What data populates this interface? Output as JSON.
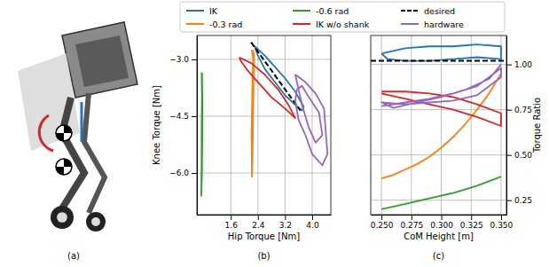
{
  "image_panel": {
    "label": "(a)"
  },
  "chart_data": [
    {
      "type": "line",
      "label": "(b)",
      "x_label": "Hip Torque [Nm]",
      "y_label": "Knee Torque [Nm]",
      "xlim": [
        0.6,
        4.55
      ],
      "ylim": [
        -7.1,
        -2.37
      ],
      "xticks": [
        1.6,
        2.4,
        3.2,
        {
          "value": 4.0,
          "label": "4.0"
        }
      ],
      "yticks": [
        {
          "value": -3.0,
          "label": "−3.0"
        },
        {
          "value": -4.5,
          "label": "−4.5"
        },
        {
          "value": -6.0,
          "label": "−6.0"
        }
      ],
      "grid": true,
      "legend": "top",
      "series": [
        {
          "name": "IK",
          "color": "#1f77b4",
          "line_style": "solid",
          "x": [
            2.3,
            2.6,
            2.9,
            3.2,
            3.5,
            3.75,
            3.7,
            3.5,
            3.2,
            2.9,
            2.6,
            2.4,
            2.3
          ],
          "values": [
            -2.65,
            -2.9,
            -3.2,
            -3.5,
            -3.85,
            -4.25,
            -4.35,
            -4.2,
            -3.95,
            -3.6,
            -3.25,
            -2.9,
            -2.65
          ]
        },
        {
          "name": "-0.3 rad",
          "color": "#ff7f0e",
          "line_style": "solid",
          "x": [
            2.22,
            2.26,
            2.24,
            2.23,
            2.22,
            2.21,
            2.22,
            2.22,
            2.24,
            2.25,
            2.26,
            2.27,
            2.28,
            2.26
          ],
          "values": [
            -2.75,
            -3.0,
            -3.5,
            -4.0,
            -4.5,
            -5.0,
            -5.5,
            -6.1,
            -5.6,
            -5.0,
            -4.3,
            -3.6,
            -2.9,
            -2.75
          ]
        },
        {
          "name": "-0.6 rad",
          "color": "#2ca02c",
          "line_style": "solid",
          "x": [
            0.74,
            0.75,
            0.74,
            0.74,
            0.73,
            0.75,
            0.76,
            0.76,
            0.75
          ],
          "values": [
            -3.35,
            -4.0,
            -4.8,
            -5.6,
            -6.6,
            -6.0,
            -5.0,
            -4.0,
            -3.35
          ]
        },
        {
          "name": "IK w/o shank",
          "color": "#d62728",
          "line_style": "solid",
          "x": [
            1.85,
            2.2,
            2.6,
            3.0,
            3.3,
            3.5,
            3.2,
            2.8,
            2.4,
            2.1,
            1.9,
            1.85
          ],
          "values": [
            -2.95,
            -3.1,
            -3.4,
            -3.8,
            -4.2,
            -4.55,
            -4.3,
            -4.0,
            -3.6,
            -3.3,
            -3.05,
            -2.95
          ]
        },
        {
          "name": "desired",
          "color": "#000000",
          "line_style": "dashed",
          "x": [
            2.2,
            3.65
          ],
          "values": [
            -2.55,
            -4.35
          ]
        },
        {
          "name": "hardware",
          "color": "#9467bd",
          "line_style": "solid",
          "x": [
            3.5,
            3.8,
            4.1,
            4.35,
            4.4,
            4.45,
            4.3,
            4.0,
            3.8,
            3.6,
            3.5,
            3.55,
            3.7,
            3.9,
            4.2,
            4.3,
            4.1,
            3.9,
            3.7,
            3.5
          ],
          "values": [
            -3.4,
            -3.6,
            -3.9,
            -4.3,
            -4.9,
            -5.5,
            -5.8,
            -5.5,
            -5.0,
            -4.6,
            -4.1,
            -3.8,
            -3.7,
            -4.0,
            -4.4,
            -5.0,
            -5.2,
            -4.8,
            -4.2,
            -3.4
          ]
        }
      ]
    },
    {
      "type": "line",
      "label": "(c)",
      "x_label": "CoM Height [m]",
      "y_label": "Torque Ratio",
      "xlim": [
        0.241,
        0.3545
      ],
      "ylim": [
        0.17,
        1.16
      ],
      "xticks": [
        {
          "value": 0.25,
          "label": "0.250"
        },
        0.275,
        {
          "value": 0.3,
          "label": "0.300"
        },
        0.325,
        {
          "value": 0.35,
          "label": "0.350"
        }
      ],
      "yticks": [
        {
          "value": 1.0,
          "label": "1.00"
        },
        0.75,
        {
          "value": 0.5,
          "label": "0.50"
        },
        0.25
      ],
      "grid": true,
      "series": [
        {
          "color": "#1f77b4",
          "line_style": "solid",
          "x": [
            0.25,
            0.27,
            0.29,
            0.31,
            0.33,
            0.35,
            0.35,
            0.33,
            0.31,
            0.29,
            0.27,
            0.255,
            0.25
          ],
          "values": [
            1.06,
            1.09,
            1.1,
            1.1,
            1.11,
            1.1,
            1.03,
            1.04,
            1.03,
            1.02,
            1.02,
            1.03,
            1.06
          ]
        },
        {
          "color": "#ff7f0e",
          "line_style": "solid",
          "x": [
            0.25,
            0.26,
            0.27,
            0.28,
            0.29,
            0.3,
            0.31,
            0.32,
            0.33,
            0.34,
            0.35
          ],
          "values": [
            0.37,
            0.39,
            0.42,
            0.45,
            0.49,
            0.54,
            0.6,
            0.67,
            0.75,
            0.84,
            0.95
          ]
        },
        {
          "color": "#2ca02c",
          "line_style": "solid",
          "x": [
            0.25,
            0.27,
            0.29,
            0.31,
            0.33,
            0.35
          ],
          "values": [
            0.2,
            0.23,
            0.26,
            0.29,
            0.33,
            0.38
          ]
        },
        {
          "color": "#d62728",
          "line_style": "solid",
          "x": [
            0.25,
            0.27,
            0.29,
            0.31,
            0.33,
            0.35,
            0.35,
            0.33,
            0.31,
            0.29,
            0.27,
            0.25
          ],
          "values": [
            0.85,
            0.85,
            0.84,
            0.82,
            0.78,
            0.73,
            0.66,
            0.71,
            0.75,
            0.78,
            0.81,
            0.84
          ]
        },
        {
          "color": "#000000",
          "line_style": "dashed",
          "x": [
            0.241,
            0.3545
          ],
          "values": [
            1.02,
            1.02
          ]
        },
        {
          "color": "#9467bd",
          "line_style": "solid",
          "x": [
            0.25,
            0.27,
            0.29,
            0.31,
            0.33,
            0.35,
            0.35,
            0.33,
            0.31,
            0.29,
            0.27,
            0.25,
            0.26,
            0.28,
            0.3,
            0.32,
            0.34,
            0.35
          ],
          "values": [
            0.77,
            0.79,
            0.81,
            0.84,
            0.88,
            0.98,
            0.93,
            0.83,
            0.8,
            0.79,
            0.78,
            0.79,
            0.76,
            0.79,
            0.82,
            0.86,
            0.92,
            1.0
          ]
        }
      ]
    }
  ]
}
